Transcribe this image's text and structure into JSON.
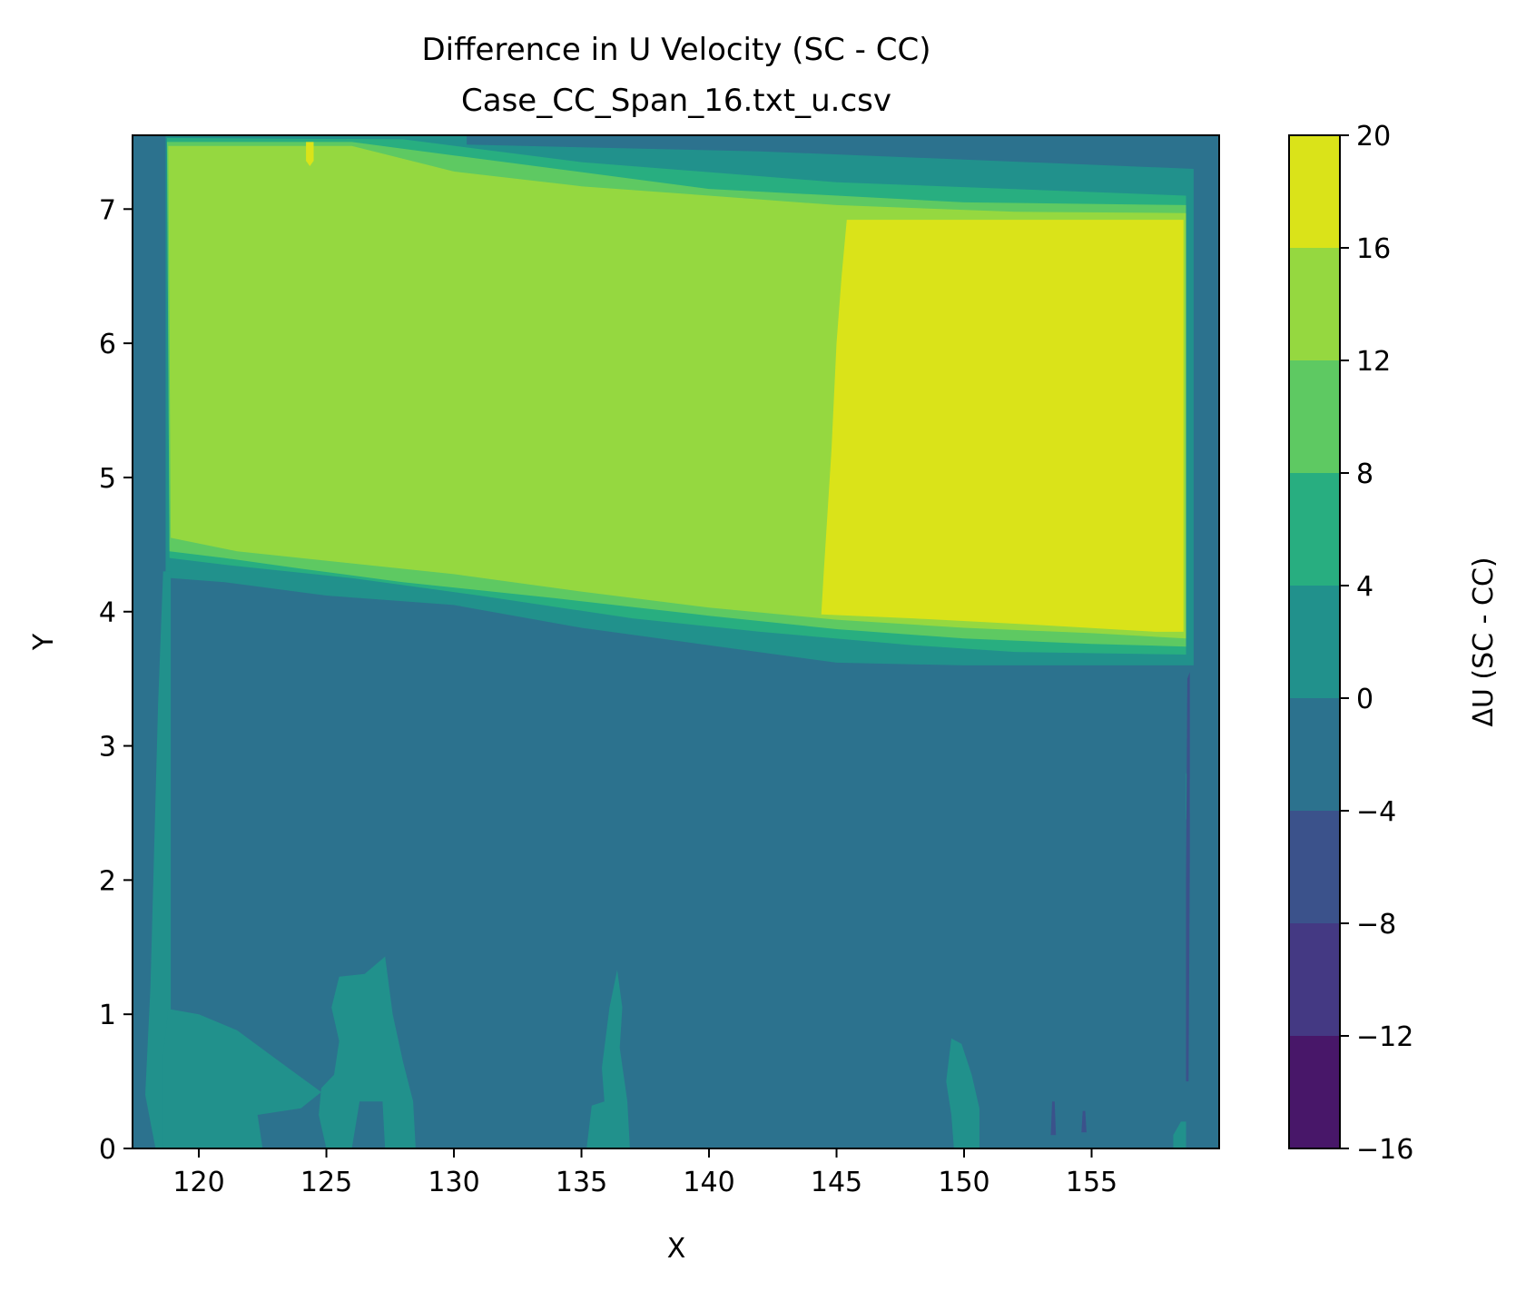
{
  "chart_data": {
    "type": "heatmap",
    "title": "Difference in U Velocity (SC - CC)",
    "subtitle": "Case_CC_Span_16.txt_u.csv",
    "xlabel": "X",
    "ylabel": "Y",
    "colorbar_label": "ΔU (SC - CC)",
    "xlim": [
      117.4,
      160.0
    ],
    "ylim": [
      0,
      7.55
    ],
    "x_ticks": [
      120,
      125,
      130,
      135,
      140,
      145,
      150,
      155
    ],
    "x_tick_labels": [
      "120",
      "125",
      "130",
      "135",
      "140",
      "145",
      "150",
      "155"
    ],
    "y_ticks": [
      0,
      1,
      2,
      3,
      4,
      5,
      6,
      7
    ],
    "y_tick_labels": [
      "0",
      "1",
      "2",
      "3",
      "4",
      "5",
      "6",
      "7"
    ],
    "colorbar_ticks": [
      -16,
      -12,
      -8,
      -4,
      0,
      4,
      8,
      12,
      16,
      20
    ],
    "colorbar_tick_labels": [
      "−16",
      "−12",
      "−8",
      "−4",
      "0",
      "4",
      "8",
      "12",
      "16",
      "20"
    ],
    "levels": [
      {
        "min": -16,
        "max": -12,
        "color": "#481769"
      },
      {
        "min": -12,
        "max": -8,
        "color": "#443983"
      },
      {
        "min": -8,
        "max": -4,
        "color": "#3b528b"
      },
      {
        "min": -4,
        "max": 0,
        "color": "#2c728e"
      },
      {
        "min": 0,
        "max": 4,
        "color": "#21918c"
      },
      {
        "min": 4,
        "max": 8,
        "color": "#28ae80"
      },
      {
        "min": 8,
        "max": 12,
        "color": "#5ec962"
      },
      {
        "min": 12,
        "max": 16,
        "color": "#95d840"
      },
      {
        "min": 16,
        "max": 20,
        "color": "#dae319"
      }
    ],
    "background_level": -2,
    "regions": [
      {
        "name": "upper-band-outer",
        "level": 2,
        "points": [
          [
            118.7,
            7.55
          ],
          [
            130.5,
            7.55
          ],
          [
            130.5,
            7.48
          ],
          [
            142,
            7.43
          ],
          [
            159,
            7.3
          ],
          [
            159,
            3.6
          ],
          [
            150,
            3.6
          ],
          [
            145,
            3.62
          ],
          [
            140,
            3.75
          ],
          [
            135,
            3.88
          ],
          [
            130,
            4.05
          ],
          [
            125,
            4.12
          ],
          [
            121,
            4.22
          ],
          [
            118.9,
            4.25
          ],
          [
            118.7,
            4.3
          ]
        ]
      },
      {
        "name": "upper-band-mid",
        "level": 6,
        "points": [
          [
            118.75,
            7.53
          ],
          [
            128,
            7.52
          ],
          [
            135,
            7.35
          ],
          [
            145,
            7.2
          ],
          [
            158.7,
            7.1
          ],
          [
            158.7,
            3.68
          ],
          [
            152,
            3.7
          ],
          [
            148,
            3.75
          ],
          [
            142,
            3.85
          ],
          [
            137,
            3.95
          ],
          [
            131,
            4.12
          ],
          [
            126,
            4.25
          ],
          [
            121,
            4.35
          ],
          [
            118.85,
            4.4
          ]
        ]
      },
      {
        "name": "upper-band-inner",
        "level": 10,
        "points": [
          [
            118.75,
            7.5
          ],
          [
            126,
            7.5
          ],
          [
            130,
            7.4
          ],
          [
            140,
            7.15
          ],
          [
            150,
            7.05
          ],
          [
            158.7,
            7.03
          ],
          [
            158.7,
            3.74
          ],
          [
            155,
            3.76
          ],
          [
            150,
            3.8
          ],
          [
            145,
            3.87
          ],
          [
            140,
            3.97
          ],
          [
            134,
            4.1
          ],
          [
            128,
            4.22
          ],
          [
            124,
            4.32
          ],
          [
            121,
            4.4
          ],
          [
            118.85,
            4.45
          ]
        ]
      },
      {
        "name": "upper-plateau",
        "level": 14,
        "points": [
          [
            118.8,
            7.47
          ],
          [
            126,
            7.47
          ],
          [
            130,
            7.28
          ],
          [
            135,
            7.17
          ],
          [
            140,
            7.1
          ],
          [
            145,
            7.03
          ],
          [
            152,
            6.98
          ],
          [
            158.7,
            6.97
          ],
          [
            158.7,
            3.8
          ],
          [
            155,
            3.84
          ],
          [
            150,
            3.88
          ],
          [
            145,
            3.94
          ],
          [
            140,
            4.03
          ],
          [
            135,
            4.15
          ],
          [
            130,
            4.28
          ],
          [
            125,
            4.38
          ],
          [
            121.5,
            4.45
          ],
          [
            118.9,
            4.55
          ]
        ]
      },
      {
        "name": "upper-right-max",
        "level": 18,
        "points": [
          [
            145.4,
            6.92
          ],
          [
            158.6,
            6.92
          ],
          [
            158.6,
            3.85
          ],
          [
            157.5,
            3.85
          ],
          [
            153,
            3.9
          ],
          [
            148,
            3.95
          ],
          [
            144.4,
            3.98
          ],
          [
            144.5,
            4.3
          ],
          [
            144.8,
            5.2
          ],
          [
            145.0,
            6.0
          ],
          [
            145.2,
            6.5
          ]
        ]
      },
      {
        "name": "max-spike-1",
        "level": 18,
        "points": [
          [
            124.2,
            7.5
          ],
          [
            124.5,
            7.5
          ],
          [
            124.5,
            7.36
          ],
          [
            124.35,
            7.32
          ],
          [
            124.2,
            7.36
          ]
        ]
      },
      {
        "name": "left-boundary-strip",
        "level": 2,
        "points": [
          [
            118.3,
            0
          ],
          [
            118.6,
            0
          ],
          [
            118.9,
            1.0
          ],
          [
            118.9,
            4.3
          ],
          [
            118.6,
            4.3
          ],
          [
            118.4,
            3.3
          ],
          [
            118.1,
            1.2
          ],
          [
            117.9,
            0.4
          ]
        ]
      },
      {
        "name": "lower-left-region",
        "level": 2,
        "points": [
          [
            118.6,
            0
          ],
          [
            122.5,
            0
          ],
          [
            122.3,
            0.25
          ],
          [
            124,
            0.3
          ],
          [
            124.8,
            0.42
          ],
          [
            123.5,
            0.6
          ],
          [
            121.5,
            0.88
          ],
          [
            120,
            1.0
          ],
          [
            118.8,
            1.04
          ],
          [
            118.6,
            0.7
          ]
        ]
      },
      {
        "name": "lower-plume-1",
        "level": 2,
        "points": [
          [
            124.8,
            0.45
          ],
          [
            125.3,
            0.55
          ],
          [
            125.5,
            0.8
          ],
          [
            125.2,
            1.05
          ],
          [
            125.5,
            1.28
          ],
          [
            126.5,
            1.3
          ],
          [
            127.3,
            1.43
          ],
          [
            127.6,
            1.0
          ],
          [
            128.0,
            0.65
          ],
          [
            128.4,
            0.35
          ],
          [
            128.5,
            0
          ],
          [
            127.3,
            0
          ],
          [
            127.2,
            0.35
          ],
          [
            126.3,
            0.35
          ],
          [
            126.0,
            0
          ],
          [
            125.0,
            0
          ],
          [
            124.7,
            0.25
          ]
        ]
      },
      {
        "name": "lower-plume-2",
        "level": 2,
        "points": [
          [
            135.2,
            0
          ],
          [
            136.9,
            0
          ],
          [
            136.8,
            0.35
          ],
          [
            136.5,
            0.75
          ],
          [
            136.6,
            1.05
          ],
          [
            136.4,
            1.33
          ],
          [
            136.1,
            1.05
          ],
          [
            135.8,
            0.6
          ],
          [
            135.9,
            0.35
          ],
          [
            135.4,
            0.32
          ]
        ]
      },
      {
        "name": "lower-plume-3",
        "level": 2,
        "points": [
          [
            149.6,
            0
          ],
          [
            150.6,
            0
          ],
          [
            150.6,
            0.3
          ],
          [
            150.3,
            0.55
          ],
          [
            149.9,
            0.78
          ],
          [
            149.5,
            0.82
          ],
          [
            149.3,
            0.5
          ],
          [
            149.5,
            0.25
          ]
        ]
      },
      {
        "name": "right-edge-patch",
        "level": 2,
        "points": [
          [
            158.7,
            2.45
          ],
          [
            158.85,
            2.5
          ],
          [
            158.85,
            2.75
          ],
          [
            158.7,
            2.8
          ]
        ]
      },
      {
        "name": "right-edge-dip",
        "level": -6,
        "points": [
          [
            158.7,
            0.5
          ],
          [
            158.8,
            0.5
          ],
          [
            158.85,
            2.2
          ],
          [
            158.85,
            3.55
          ],
          [
            158.75,
            3.5
          ],
          [
            158.7,
            2.0
          ]
        ]
      },
      {
        "name": "lower-right-corner",
        "level": 2,
        "points": [
          [
            158.2,
            0
          ],
          [
            158.7,
            0
          ],
          [
            158.7,
            0.2
          ],
          [
            158.5,
            0.2
          ],
          [
            158.2,
            0.1
          ]
        ]
      },
      {
        "name": "small-dip-1",
        "level": -6,
        "points": [
          [
            153.4,
            0.1
          ],
          [
            153.6,
            0.1
          ],
          [
            153.55,
            0.35
          ],
          [
            153.45,
            0.35
          ]
        ]
      },
      {
        "name": "small-dip-2",
        "level": -6,
        "points": [
          [
            154.6,
            0.12
          ],
          [
            154.8,
            0.12
          ],
          [
            154.75,
            0.28
          ],
          [
            154.65,
            0.28
          ]
        ]
      }
    ]
  }
}
